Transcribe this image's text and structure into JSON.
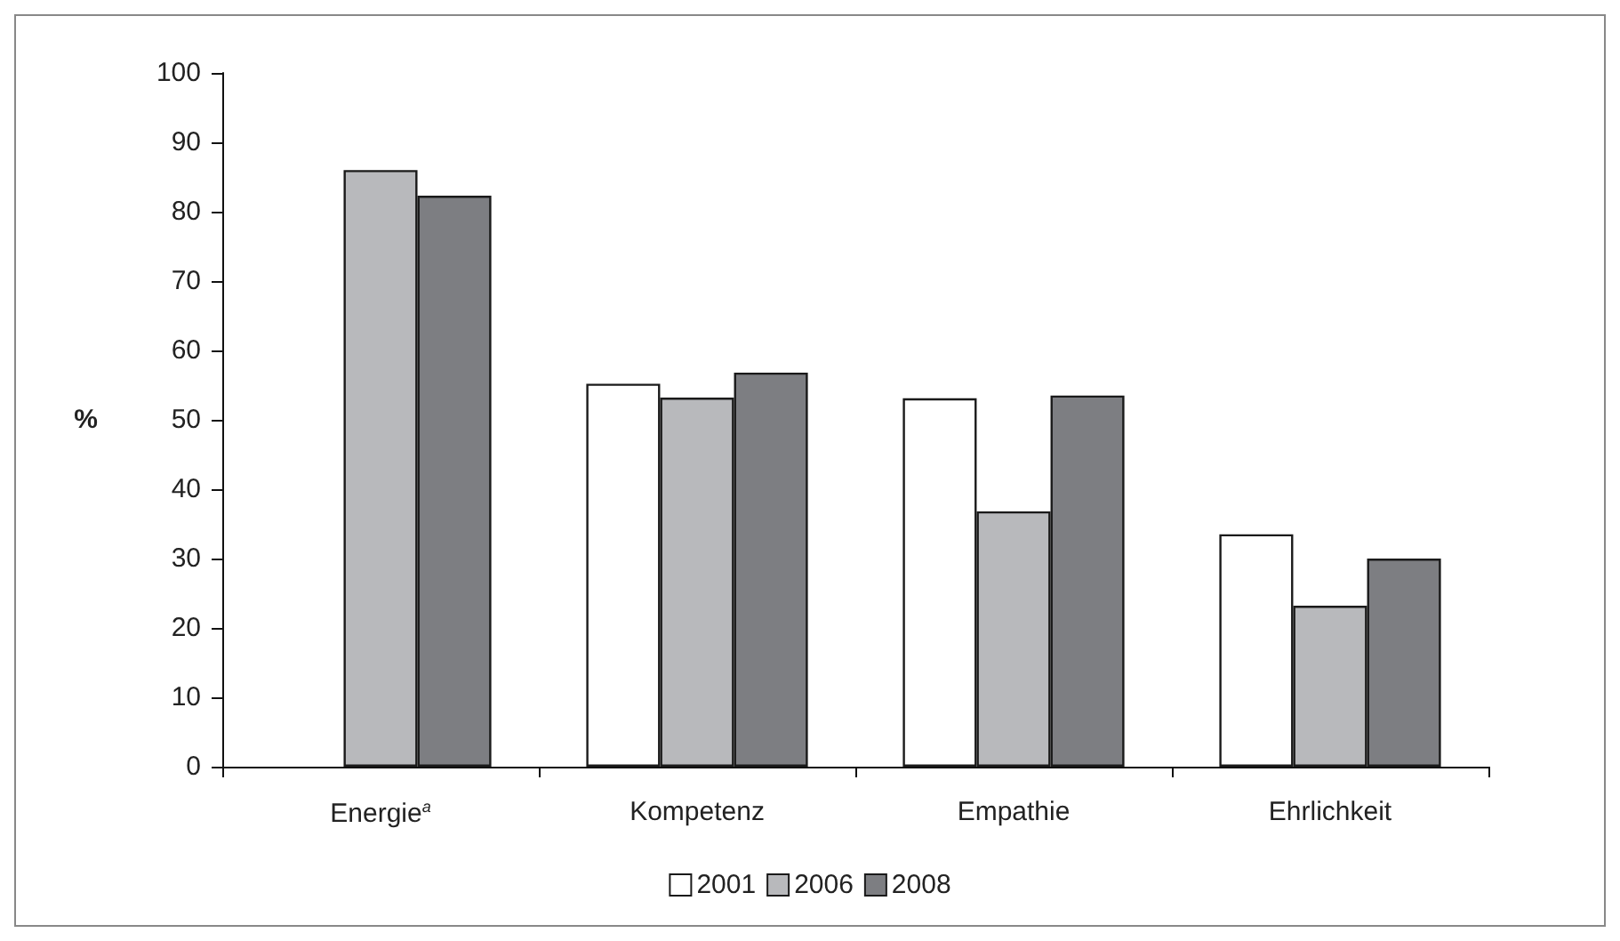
{
  "chart_data": {
    "type": "bar",
    "ylabel": "%",
    "categories": [
      "Energie$^{a}$",
      "Kompetenz",
      "Empathie",
      "Ehrlichkeit"
    ],
    "series": [
      {
        "name": "2001",
        "color": "#ffffff",
        "values": [
          null,
          55.2,
          53.1,
          33.5
        ]
      },
      {
        "name": "2006",
        "color": "#b8b9bc",
        "values": [
          86,
          53.2,
          36.8,
          23.2
        ]
      },
      {
        "name": "2008",
        "color": "#7d7e82",
        "values": [
          82.3,
          56.8,
          53.5,
          30
        ]
      }
    ],
    "ylim": [
      0,
      100
    ],
    "yticks": [
      0,
      10,
      20,
      30,
      40,
      50,
      60,
      70,
      80,
      90,
      100
    ],
    "grid": false,
    "legend": "bottom"
  }
}
